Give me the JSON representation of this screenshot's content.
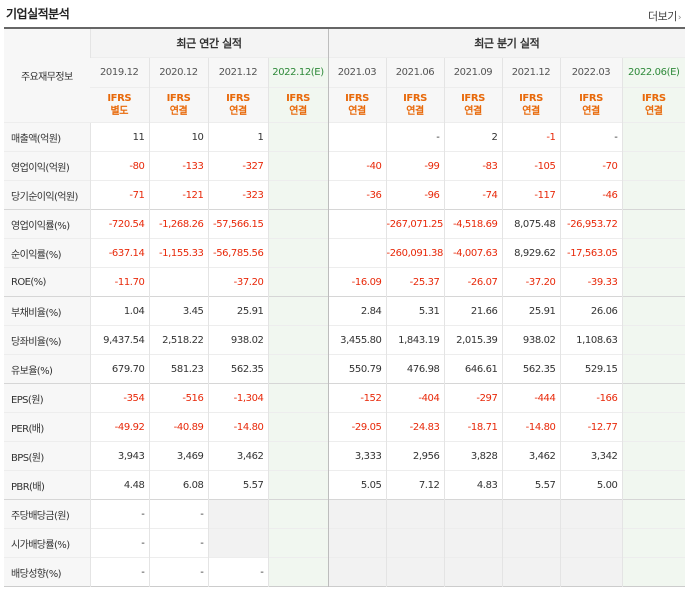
{
  "header": {
    "title": "기업실적분석",
    "more_label": "더보기",
    "more_arrow": "›"
  },
  "table": {
    "corner_label": "주요재무정보",
    "annual_group_label": "최근 연간 실적",
    "quarter_group_label": "최근 분기 실적",
    "periods": [
      "2019.12",
      "2020.12",
      "2021.12",
      "2022.12(E)",
      "2021.03",
      "2021.06",
      "2021.09",
      "2021.12",
      "2022.03",
      "2022.06(E)"
    ],
    "standards": [
      [
        "IFRS",
        "별도"
      ],
      [
        "IFRS",
        "연결"
      ],
      [
        "IFRS",
        "연결"
      ],
      [
        "IFRS",
        "연결"
      ],
      [
        "IFRS",
        "연결"
      ],
      [
        "IFRS",
        "연결"
      ],
      [
        "IFRS",
        "연결"
      ],
      [
        "IFRS",
        "연결"
      ],
      [
        "IFRS",
        "연결"
      ],
      [
        "IFRS",
        "연결"
      ]
    ],
    "rows": [
      {
        "label": "매출액(억원)",
        "values": [
          "11",
          "10",
          "1",
          "",
          "",
          "-",
          "2",
          "-1",
          "-",
          ""
        ]
      },
      {
        "label": "영업이익(억원)",
        "values": [
          "-80",
          "-133",
          "-327",
          "",
          "-40",
          "-99",
          "-83",
          "-105",
          "-70",
          ""
        ]
      },
      {
        "label": "당기순이익(억원)",
        "values": [
          "-71",
          "-121",
          "-323",
          "",
          "-36",
          "-96",
          "-74",
          "-117",
          "-46",
          ""
        ]
      },
      {
        "label": "영업이익률(%)",
        "values": [
          "-720.54",
          "-1,268.26",
          "-57,566.15",
          "",
          "",
          "-267,071.25",
          "-4,518.69",
          "8,075.48",
          "-26,953.72",
          ""
        ]
      },
      {
        "label": "순이익률(%)",
        "values": [
          "-637.14",
          "-1,155.33",
          "-56,785.56",
          "",
          "",
          "-260,091.38",
          "-4,007.63",
          "8,929.62",
          "-17,563.05",
          ""
        ]
      },
      {
        "label": "ROE(%)",
        "values": [
          "-11.70",
          "",
          "-37.20",
          "",
          "-16.09",
          "-25.37",
          "-26.07",
          "-37.20",
          "-39.33",
          ""
        ]
      },
      {
        "label": "부채비율(%)",
        "values": [
          "1.04",
          "3.45",
          "25.91",
          "",
          "2.84",
          "5.31",
          "21.66",
          "25.91",
          "26.06",
          ""
        ]
      },
      {
        "label": "당좌비율(%)",
        "values": [
          "9,437.54",
          "2,518.22",
          "938.02",
          "",
          "3,455.80",
          "1,843.19",
          "2,015.39",
          "938.02",
          "1,108.63",
          ""
        ]
      },
      {
        "label": "유보율(%)",
        "values": [
          "679.70",
          "581.23",
          "562.35",
          "",
          "550.79",
          "476.98",
          "646.61",
          "562.35",
          "529.15",
          ""
        ]
      },
      {
        "label": "EPS(원)",
        "values": [
          "-354",
          "-516",
          "-1,304",
          "",
          "-152",
          "-404",
          "-297",
          "-444",
          "-166",
          ""
        ]
      },
      {
        "label": "PER(배)",
        "values": [
          "-49.92",
          "-40.89",
          "-14.80",
          "",
          "-29.05",
          "-24.83",
          "-18.71",
          "-14.80",
          "-12.77",
          ""
        ]
      },
      {
        "label": "BPS(원)",
        "values": [
          "3,943",
          "3,469",
          "3,462",
          "",
          "3,333",
          "2,956",
          "3,828",
          "3,462",
          "3,342",
          ""
        ]
      },
      {
        "label": "PBR(배)",
        "values": [
          "4.48",
          "6.08",
          "5.57",
          "",
          "5.05",
          "7.12",
          "4.83",
          "5.57",
          "5.00",
          ""
        ]
      },
      {
        "label": "주당배당금(원)",
        "values": [
          "-",
          "-",
          "",
          "",
          "",
          "",
          "",
          "",
          "",
          ""
        ]
      },
      {
        "label": "시가배당률(%)",
        "values": [
          "-",
          "-",
          "",
          "",
          "",
          "",
          "",
          "",
          "",
          ""
        ]
      },
      {
        "label": "배당성향(%)",
        "values": [
          "-",
          "-",
          "-",
          "",
          "",
          "",
          "",
          "",
          "",
          ""
        ]
      }
    ]
  },
  "colors": {
    "negative": "#e8290a",
    "ifrs": "#e8690a",
    "estimate": "#2f8a3a"
  }
}
